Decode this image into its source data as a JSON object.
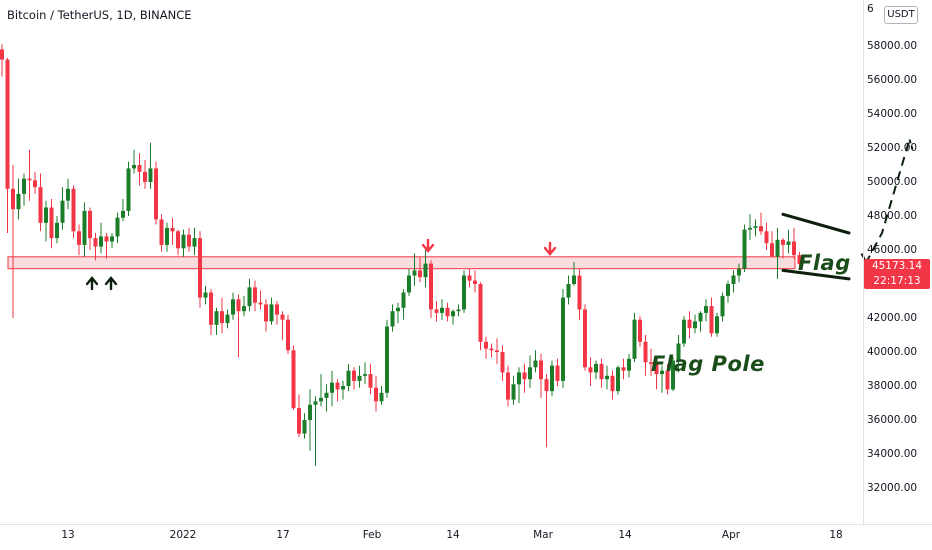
{
  "header": {
    "title": "Bitcoin / TetherUS, 1D, BINANCE",
    "currency_button": "USDT",
    "price_top_clip": "6"
  },
  "price_label": {
    "price": "45173.14",
    "countdown": "22:17:13"
  },
  "annotations": {
    "flag": "Flag",
    "flag_pole": "Flag Pole"
  },
  "colors": {
    "up": "#22ab94",
    "up_body": "#1b7d2a",
    "down": "#f23645",
    "zone_fill": "#f7c6c9",
    "zone_border": "#f23645",
    "annotation": "#1b4d1b"
  },
  "chart_data": {
    "type": "candlestick",
    "title": "Bitcoin / TetherUS, 1D, BINANCE",
    "y_ticks": [
      "58000.00",
      "56000.00",
      "54000.00",
      "52000.00",
      "50000.00",
      "48000.00",
      "46000.00",
      "44000.00",
      "42000.00",
      "40000.00",
      "38000.00",
      "36000.00",
      "34000.00",
      "32000.00"
    ],
    "x_ticks": [
      "13",
      "2022",
      "17",
      "Feb",
      "14",
      "Mar",
      "14",
      "Apr",
      "18"
    ],
    "ylim": [
      31000,
      61000
    ],
    "support_zone": [
      44900,
      45600
    ],
    "flag_channel": {
      "upper": [
        [
          -3,
          48100
        ],
        [
          9,
          47000
        ]
      ],
      "lower": [
        [
          -3,
          44800
        ],
        [
          9,
          44300
        ]
      ]
    },
    "projection": [
      [
        12,
        45200
      ],
      [
        15,
        47000
      ],
      [
        20,
        52500
      ]
    ],
    "grid": false,
    "candles": [
      [
        57800,
        58100,
        56200,
        57200
      ],
      [
        57200,
        57300,
        47000,
        49600
      ],
      [
        49600,
        51000,
        42000,
        48400
      ],
      [
        48400,
        50200,
        47800,
        49300
      ],
      [
        49300,
        50500,
        48600,
        50200
      ],
      [
        50200,
        51900,
        48900,
        50100
      ],
      [
        50100,
        50600,
        49300,
        49700
      ],
      [
        49700,
        50500,
        47100,
        47600
      ],
      [
        47600,
        48900,
        46500,
        48500
      ],
      [
        48500,
        49000,
        46100,
        46700
      ],
      [
        46700,
        48000,
        46400,
        47600
      ],
      [
        47600,
        49700,
        47200,
        48900
      ],
      [
        48900,
        50200,
        48400,
        49600
      ],
      [
        49600,
        49800,
        46700,
        47100
      ],
      [
        47100,
        47500,
        45700,
        46300
      ],
      [
        46300,
        48800,
        45600,
        48300
      ],
      [
        48300,
        48500,
        46000,
        46700
      ],
      [
        46700,
        47000,
        45400,
        46200
      ],
      [
        46200,
        47600,
        45800,
        46800
      ],
      [
        46800,
        47000,
        45500,
        46500
      ],
      [
        46500,
        47000,
        46100,
        46800
      ],
      [
        46800,
        48200,
        46400,
        47900
      ],
      [
        47900,
        49000,
        47700,
        48300
      ],
      [
        48300,
        51200,
        48000,
        50800
      ],
      [
        50800,
        51900,
        50500,
        51000
      ],
      [
        51000,
        51700,
        49800,
        50600
      ],
      [
        50600,
        51300,
        49600,
        50000
      ],
      [
        50000,
        52300,
        49600,
        50800
      ],
      [
        50800,
        51200,
        47500,
        47800
      ],
      [
        47800,
        48100,
        45900,
        46300
      ],
      [
        46300,
        47600,
        45900,
        47300
      ],
      [
        47300,
        47900,
        46300,
        47100
      ],
      [
        47100,
        47200,
        45700,
        46100
      ],
      [
        46100,
        47200,
        45600,
        46900
      ],
      [
        46900,
        47300,
        45900,
        46200
      ],
      [
        46200,
        47300,
        45700,
        46700
      ],
      [
        46700,
        47100,
        42600,
        43200
      ],
      [
        43200,
        43900,
        42800,
        43500
      ],
      [
        43500,
        43700,
        41000,
        41600
      ],
      [
        41600,
        42600,
        41000,
        42400
      ],
      [
        42400,
        43200,
        41100,
        41700
      ],
      [
        41700,
        42500,
        41400,
        42200
      ],
      [
        42200,
        43500,
        41900,
        43100
      ],
      [
        43100,
        43400,
        39700,
        42400
      ],
      [
        42400,
        43300,
        42100,
        42700
      ],
      [
        42700,
        44300,
        42400,
        43800
      ],
      [
        43800,
        44200,
        42400,
        42900
      ],
      [
        42900,
        43600,
        42500,
        42800
      ],
      [
        42800,
        43100,
        41200,
        41800
      ],
      [
        41800,
        43200,
        41600,
        42800
      ],
      [
        42800,
        43000,
        41600,
        42200
      ],
      [
        42200,
        42400,
        40700,
        41900
      ],
      [
        41900,
        42200,
        39900,
        40100
      ],
      [
        40100,
        40400,
        36600,
        36700
      ],
      [
        36700,
        37500,
        35000,
        35200
      ],
      [
        35200,
        36400,
        34900,
        36000
      ],
      [
        36000,
        37800,
        34200,
        36900
      ],
      [
        36900,
        37400,
        33300,
        37100
      ],
      [
        37100,
        38700,
        36800,
        37300
      ],
      [
        37300,
        38100,
        36500,
        37600
      ],
      [
        37600,
        38900,
        36800,
        38200
      ],
      [
        38200,
        38400,
        37100,
        37800
      ],
      [
        37800,
        38300,
        37200,
        38000
      ],
      [
        38000,
        39300,
        37700,
        38900
      ],
      [
        38900,
        39100,
        37800,
        38300
      ],
      [
        38300,
        39200,
        37900,
        38600
      ],
      [
        38600,
        39400,
        38100,
        38700
      ],
      [
        38700,
        39300,
        37500,
        37900
      ],
      [
        37900,
        38600,
        36500,
        37100
      ],
      [
        37100,
        38000,
        36900,
        37600
      ],
      [
        37600,
        41900,
        37300,
        41500
      ],
      [
        41500,
        42800,
        41200,
        42400
      ],
      [
        42400,
        42900,
        41700,
        42600
      ],
      [
        42600,
        43700,
        41900,
        43500
      ],
      [
        43500,
        44900,
        43300,
        44500
      ],
      [
        44500,
        45800,
        43900,
        44800
      ],
      [
        44800,
        45600,
        44100,
        44400
      ],
      [
        44400,
        46000,
        43800,
        45200
      ],
      [
        45200,
        45400,
        42000,
        42500
      ],
      [
        42500,
        43000,
        41800,
        42300
      ],
      [
        42300,
        43100,
        41900,
        42600
      ],
      [
        42600,
        42900,
        41800,
        42100
      ],
      [
        42100,
        42500,
        41600,
        42400
      ],
      [
        42400,
        42800,
        42100,
        42500
      ],
      [
        42500,
        44800,
        42300,
        44500
      ],
      [
        44500,
        44900,
        43800,
        44200
      ],
      [
        44200,
        44800,
        43500,
        44000
      ],
      [
        44000,
        44100,
        40100,
        40600
      ],
      [
        40600,
        40900,
        39600,
        40200
      ],
      [
        40200,
        40500,
        39700,
        40100
      ],
      [
        40100,
        40800,
        39300,
        40000
      ],
      [
        40000,
        40400,
        38300,
        38800
      ],
      [
        38800,
        39200,
        36800,
        37200
      ],
      [
        37200,
        38600,
        36900,
        38100
      ],
      [
        38100,
        39100,
        37000,
        38800
      ],
      [
        38800,
        39300,
        37600,
        38400
      ],
      [
        38400,
        39800,
        37900,
        39100
      ],
      [
        39100,
        40100,
        38800,
        39500
      ],
      [
        39500,
        39900,
        37300,
        38400
      ],
      [
        38400,
        38700,
        34400,
        37700
      ],
      [
        37700,
        39500,
        37400,
        39200
      ],
      [
        39200,
        39600,
        38000,
        38300
      ],
      [
        38300,
        43700,
        37900,
        43200
      ],
      [
        43200,
        44500,
        42800,
        44000
      ],
      [
        44000,
        45300,
        43900,
        44500
      ],
      [
        44500,
        44900,
        41900,
        42500
      ],
      [
        42500,
        42800,
        38900,
        39100
      ],
      [
        39100,
        39700,
        38000,
        38800
      ],
      [
        38800,
        39500,
        38400,
        39300
      ],
      [
        39300,
        39600,
        37900,
        38400
      ],
      [
        38400,
        39200,
        37800,
        38600
      ],
      [
        38600,
        38900,
        37200,
        37700
      ],
      [
        37700,
        39200,
        37500,
        39100
      ],
      [
        39100,
        39600,
        38400,
        38900
      ],
      [
        38900,
        39900,
        38500,
        39600
      ],
      [
        39600,
        42300,
        39400,
        41900
      ],
      [
        41900,
        42100,
        40300,
        40600
      ],
      [
        40600,
        41000,
        38600,
        39400
      ],
      [
        39400,
        40200,
        38600,
        39300
      ],
      [
        39300,
        39500,
        37800,
        38700
      ],
      [
        38700,
        39200,
        37600,
        38900
      ],
      [
        38900,
        39300,
        37500,
        37800
      ],
      [
        37800,
        39700,
        37700,
        39500
      ],
      [
        39500,
        41000,
        38800,
        40500
      ],
      [
        40500,
        42100,
        40300,
        41900
      ],
      [
        41900,
        42400,
        40800,
        41400
      ],
      [
        41400,
        42200,
        41100,
        41800
      ],
      [
        41800,
        42400,
        41200,
        42300
      ],
      [
        42300,
        43100,
        41800,
        42700
      ],
      [
        42700,
        43200,
        40900,
        41100
      ],
      [
        41100,
        42300,
        40900,
        42100
      ],
      [
        42100,
        43500,
        41800,
        43300
      ],
      [
        43300,
        44200,
        42900,
        44000
      ],
      [
        44000,
        44800,
        43500,
        44500
      ],
      [
        44500,
        45200,
        44100,
        44900
      ],
      [
        44900,
        47500,
        44700,
        47200
      ],
      [
        47200,
        48100,
        46600,
        47300
      ],
      [
        47300,
        47800,
        46800,
        47400
      ],
      [
        47400,
        48200,
        46900,
        47100
      ],
      [
        47100,
        47600,
        46000,
        46400
      ],
      [
        46400,
        47100,
        45700,
        45600
      ],
      [
        45600,
        47300,
        44300,
        46600
      ],
      [
        46600,
        46700,
        45500,
        46300
      ],
      [
        46300,
        47200,
        45800,
        46500
      ],
      [
        46500,
        47300,
        45500,
        45700
      ],
      [
        45700,
        45900,
        44900,
        45173
      ]
    ]
  }
}
